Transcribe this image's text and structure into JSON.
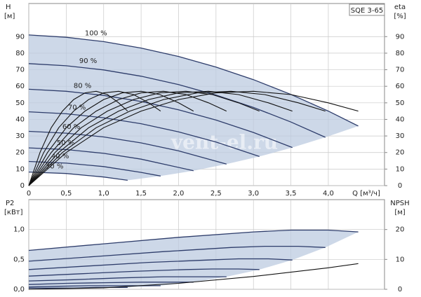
{
  "chart_data": [
    {
      "type": "line",
      "title": "SQE 3-65",
      "ylabel": "H",
      "ylabel_unit": "[м]",
      "y2label": "eta",
      "y2label_unit": "[%]",
      "xlabel": "Q [м³/ч]",
      "watermark": "vent-el.ru",
      "xlim": [
        0,
        4.75
      ],
      "xticks": [
        0,
        {
          "value": 0.5,
          "label": "0,5"
        },
        {
          "value": 1.0,
          "label": "1,0"
        },
        {
          "value": 1.5,
          "label": "1,5"
        },
        {
          "value": 2.0,
          "label": "2,0"
        },
        {
          "value": 2.5,
          "label": "2,5"
        },
        {
          "value": 3.0,
          "label": "3,0"
        },
        {
          "value": 3.5,
          "label": "3,5"
        },
        {
          "value": 4.0,
          "label": "4,0"
        }
      ],
      "ylim": [
        0,
        110
      ],
      "yticks": [
        0,
        10,
        20,
        30,
        40,
        50,
        60,
        70,
        80,
        90
      ],
      "y2lim": [
        0,
        110
      ],
      "y2ticks": [
        0,
        10,
        20,
        30,
        40,
        50,
        60,
        70,
        80,
        90
      ],
      "grid": true,
      "curve_labels": true,
      "shade_color": "#bccbe0",
      "line_color": "#2e3d6b",
      "series": [
        {
          "name": "100 %",
          "x": [
            0,
            0.5,
            1,
            1.5,
            2,
            2.5,
            3,
            3.5,
            4,
            4.4
          ],
          "values": [
            91,
            89.6,
            87,
            83.1,
            78,
            71.6,
            64,
            55.1,
            45,
            36
          ]
        },
        {
          "name": "90 %",
          "x": [
            0,
            0.5,
            1,
            1.5,
            2,
            2.5,
            3,
            3.5,
            3.96
          ],
          "values": [
            73.7,
            72.4,
            69.9,
            66.1,
            61.0,
            54.7,
            47.2,
            38.4,
            29.2
          ]
        },
        {
          "name": "80 %",
          "x": [
            0,
            0.5,
            1,
            1.5,
            2,
            2.5,
            3,
            3.52
          ],
          "values": [
            58.2,
            57.0,
            54.5,
            50.8,
            45.8,
            39.6,
            32.1,
            23.0
          ]
        },
        {
          "name": "70 %",
          "x": [
            0,
            0.5,
            1,
            1.5,
            2,
            2.5,
            3.08
          ],
          "values": [
            44.6,
            43.4,
            41.0,
            37.4,
            32.5,
            26.3,
            17.6
          ]
        },
        {
          "name": "60 %",
          "x": [
            0,
            0.5,
            1,
            1.5,
            2,
            2.64
          ],
          "values": [
            32.8,
            31.7,
            29.4,
            25.8,
            21.0,
            13.0
          ]
        },
        {
          "name": "50 %",
          "x": [
            0,
            0.5,
            1,
            1.5,
            2.2
          ],
          "values": [
            22.8,
            21.8,
            19.5,
            16.0,
            9.0
          ]
        },
        {
          "name": "40 %",
          "x": [
            0,
            0.5,
            1,
            1.5,
            1.76
          ],
          "values": [
            14.6,
            13.6,
            11.5,
            8.0,
            5.8
          ]
        },
        {
          "name": "30 %",
          "x": [
            0,
            0.5,
            1,
            1.32
          ],
          "values": [
            8.2,
            7.3,
            5.2,
            3.2
          ]
        },
        {
          "axis": "y2",
          "color": "#111111",
          "x": [
            0,
            0.5,
            1,
            1.5,
            2,
            2.5,
            3,
            3.5,
            4,
            4.4
          ],
          "values": [
            0,
            20,
            35,
            45,
            52,
            56,
            57,
            55,
            50,
            45
          ]
        },
        {
          "axis": "y2",
          "color": "#111111",
          "x": [
            0,
            0.45,
            0.9,
            1.35,
            1.8,
            2.25,
            2.7,
            3.15,
            3.6,
            3.96
          ],
          "values": [
            0,
            20,
            35,
            45,
            52,
            56,
            57,
            55,
            50,
            45
          ]
        },
        {
          "axis": "y2",
          "color": "#111111",
          "x": [
            0,
            0.4,
            0.8,
            1.2,
            1.6,
            2.0,
            2.4,
            2.8,
            3.2,
            3.52
          ],
          "values": [
            0,
            20,
            35,
            45,
            52,
            56,
            57,
            55,
            50,
            45
          ]
        },
        {
          "axis": "y2",
          "color": "#111111",
          "x": [
            0,
            0.35,
            0.7,
            1.05,
            1.4,
            1.75,
            2.1,
            2.45,
            2.8,
            3.08
          ],
          "values": [
            0,
            20,
            35,
            45,
            52,
            56,
            57,
            55,
            50,
            45
          ]
        },
        {
          "axis": "y2",
          "color": "#111111",
          "x": [
            0,
            0.3,
            0.6,
            0.9,
            1.2,
            1.5,
            1.8,
            2.1,
            2.4,
            2.64
          ],
          "values": [
            0,
            20,
            35,
            45,
            52,
            56,
            57,
            55,
            50,
            45
          ]
        },
        {
          "axis": "y2",
          "color": "#111111",
          "x": [
            0,
            0.25,
            0.5,
            0.75,
            1.0,
            1.25,
            1.5,
            1.75,
            2.0,
            2.2
          ],
          "values": [
            0,
            20,
            35,
            45,
            52,
            56,
            57,
            55,
            50,
            45
          ]
        },
        {
          "axis": "y2",
          "color": "#111111",
          "x": [
            0,
            0.2,
            0.4,
            0.6,
            0.8,
            1.0,
            1.2,
            1.4,
            1.6,
            1.76
          ],
          "values": [
            0,
            20,
            35,
            45,
            52,
            56,
            57,
            55,
            50,
            45
          ]
        },
        {
          "axis": "y2",
          "color": "#111111",
          "x": [
            0,
            0.15,
            0.3,
            0.45,
            0.6,
            0.75,
            0.9,
            1.05,
            1.2,
            1.32
          ],
          "values": [
            0,
            20,
            35,
            45,
            52,
            56,
            57,
            55,
            50,
            45
          ]
        }
      ]
    },
    {
      "type": "line",
      "ylabel": "P2",
      "ylabel_unit": "[кВт]",
      "y2label": "NPSH",
      "y2label_unit": "[м]",
      "xlim": [
        0,
        4.75
      ],
      "ylim": [
        0,
        1.5
      ],
      "yticks": [
        {
          "value": 0,
          "label": "0,0"
        },
        {
          "value": 0.5,
          "label": "0,5"
        },
        {
          "value": 1.0,
          "label": "1,0"
        }
      ],
      "y2lim": [
        0,
        30
      ],
      "y2ticks": [
        0,
        10,
        20
      ],
      "grid": true,
      "curve_labels": false,
      "shade_color": "#bccbe0",
      "line_color": "#2e3d6b",
      "series": [
        {
          "x": [
            0,
            1,
            2,
            3,
            3.5,
            4,
            4.4
          ],
          "values": [
            0.65,
            0.76,
            0.87,
            0.96,
            0.99,
            0.99,
            0.96
          ]
        },
        {
          "x": [
            0,
            0.9,
            1.8,
            2.7,
            3.15,
            3.6,
            3.96
          ],
          "values": [
            0.47,
            0.55,
            0.63,
            0.7,
            0.72,
            0.72,
            0.7
          ]
        },
        {
          "x": [
            0,
            0.8,
            1.6,
            2.4,
            2.8,
            3.2,
            3.52
          ],
          "values": [
            0.33,
            0.39,
            0.45,
            0.49,
            0.51,
            0.51,
            0.49
          ]
        },
        {
          "x": [
            0,
            0.7,
            1.4,
            2.1,
            2.45,
            2.8,
            3.08
          ],
          "values": [
            0.22,
            0.26,
            0.3,
            0.33,
            0.34,
            0.34,
            0.33
          ]
        },
        {
          "x": [
            0,
            0.6,
            1.2,
            1.8,
            2.1,
            2.4,
            2.64
          ],
          "values": [
            0.14,
            0.16,
            0.19,
            0.21,
            0.21,
            0.21,
            0.21
          ]
        },
        {
          "x": [
            0,
            0.5,
            1,
            1.5,
            1.75,
            2,
            2.2
          ],
          "values": [
            0.08,
            0.1,
            0.11,
            0.12,
            0.12,
            0.12,
            0.12
          ]
        },
        {
          "x": [
            0,
            0.4,
            0.8,
            1.2,
            1.4,
            1.6,
            1.76
          ],
          "values": [
            0.04,
            0.05,
            0.06,
            0.06,
            0.06,
            0.06,
            0.06
          ]
        },
        {
          "x": [
            0,
            0.3,
            0.6,
            0.9,
            1.05,
            1.2,
            1.32
          ],
          "values": [
            0.02,
            0.02,
            0.02,
            0.03,
            0.03,
            0.03,
            0.03
          ]
        },
        {
          "axis": "y2",
          "color": "#111111",
          "x": [
            0,
            1,
            2,
            3,
            4,
            4.4
          ],
          "values": [
            0,
            0.5,
            2,
            4.3,
            7.2,
            8.6
          ]
        }
      ]
    }
  ]
}
